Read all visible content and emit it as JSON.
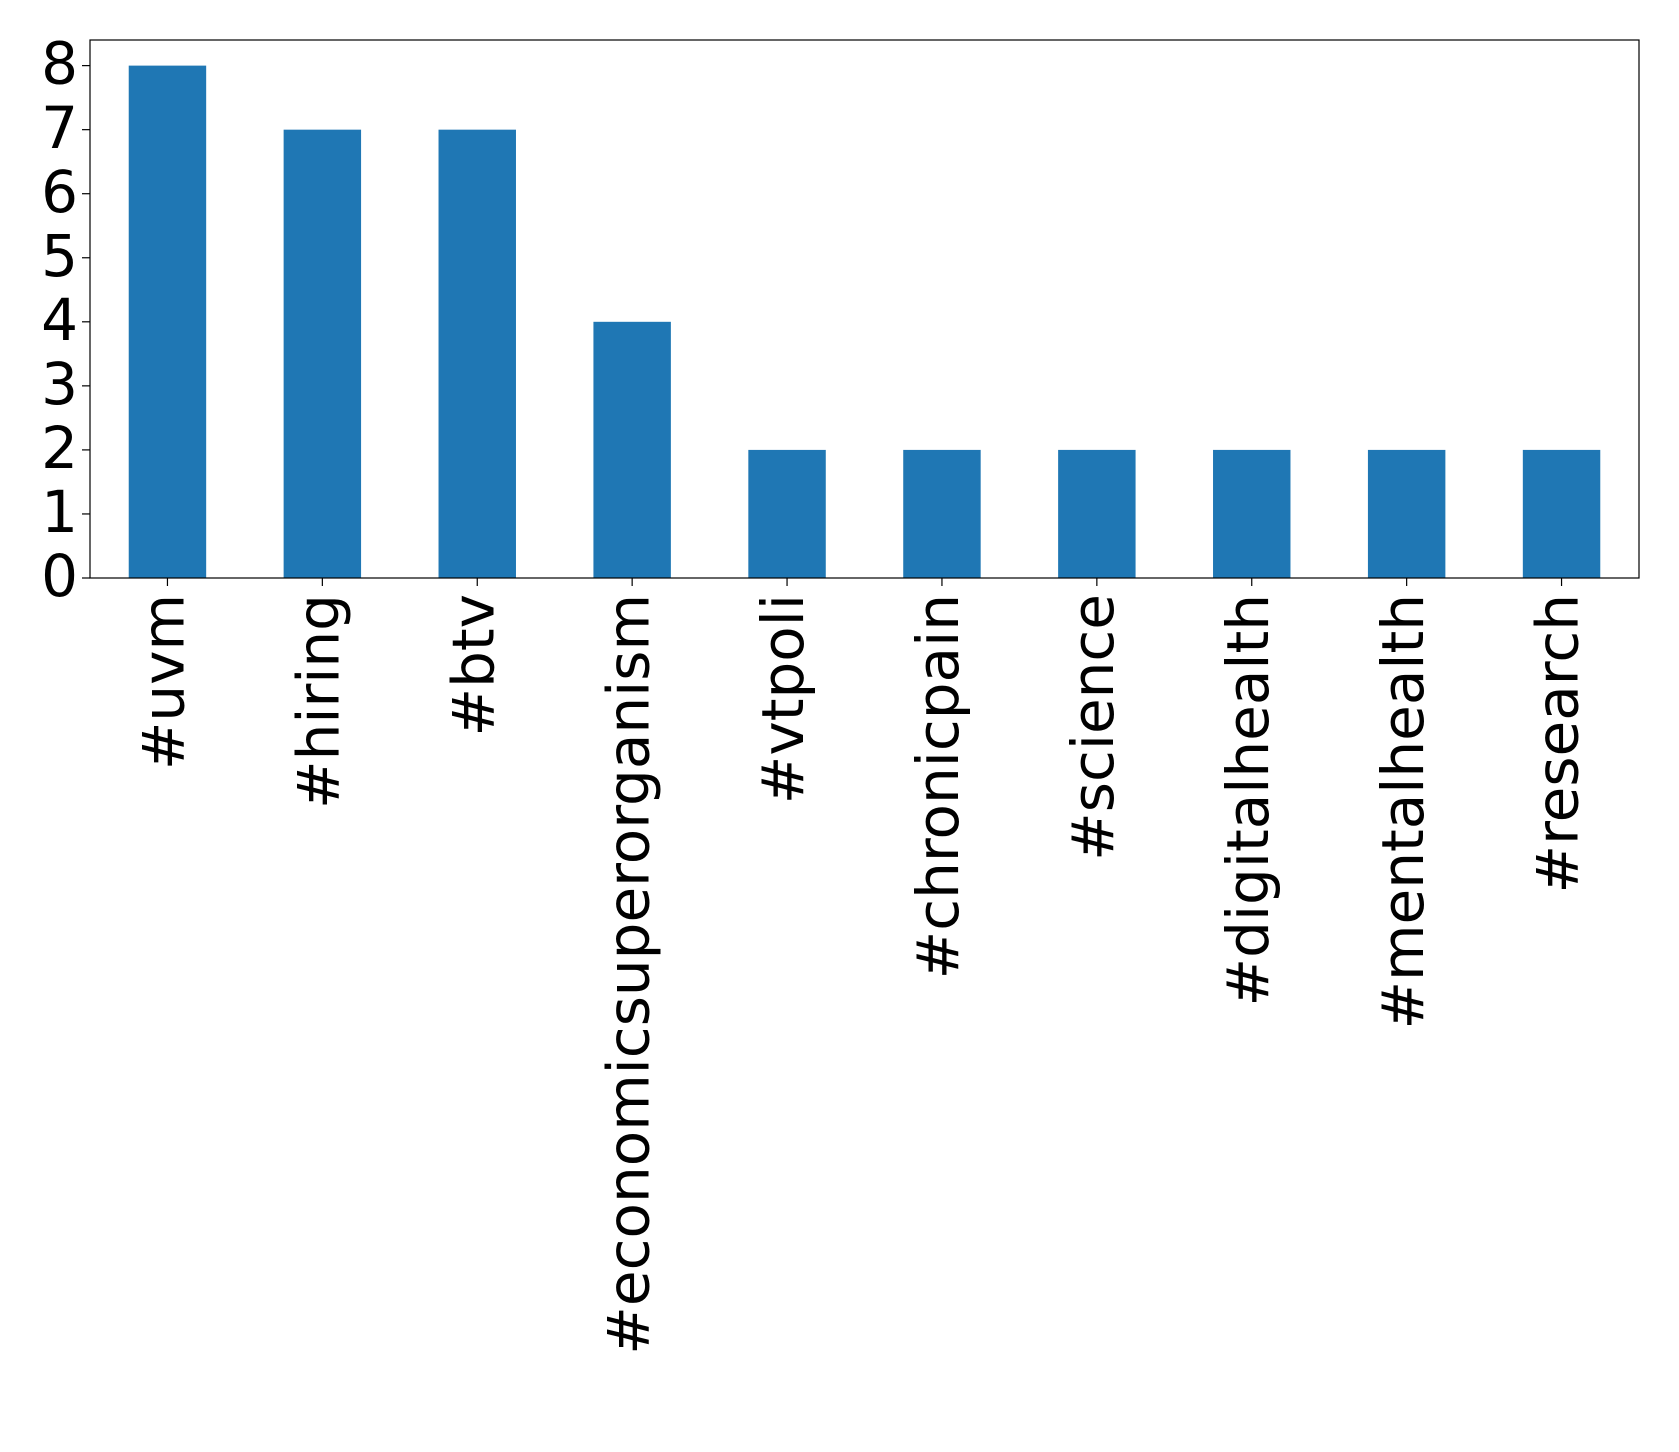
{
  "chart_data": {
    "type": "bar",
    "categories": [
      "#uvm",
      "#hiring",
      "#btv",
      "#economicsuperorganism",
      "#vtpoli",
      "#chronicpain",
      "#science",
      "#digitalhealth",
      "#mentalhealth",
      "#research"
    ],
    "values": [
      8,
      7,
      7,
      4,
      2,
      2,
      2,
      2,
      2,
      2
    ],
    "color": "#1f77b4",
    "ylim": [
      0,
      8.4
    ],
    "yticks": [
      0,
      1,
      2,
      3,
      4,
      5,
      6,
      7,
      8
    ],
    "grid": false
  }
}
